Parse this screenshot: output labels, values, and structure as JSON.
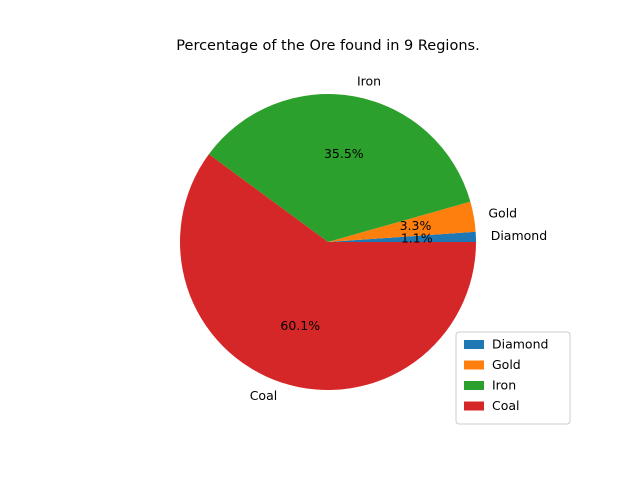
{
  "chart_data": {
    "type": "pie",
    "title": "Percentage of the Ore found in 9 Regions.",
    "categories": [
      "Diamond",
      "Gold",
      "Iron",
      "Coal"
    ],
    "values": [
      1.1,
      3.3,
      35.5,
      60.1
    ],
    "value_labels": [
      "1.1%",
      "3.3%",
      "35.5%",
      "60.1%"
    ],
    "colors": [
      "#1f77b4",
      "#ff7f0e",
      "#2ca02c",
      "#d62728"
    ],
    "start_angle_deg": 0,
    "direction": "counterclockwise",
    "legend_position": "lower-right"
  }
}
